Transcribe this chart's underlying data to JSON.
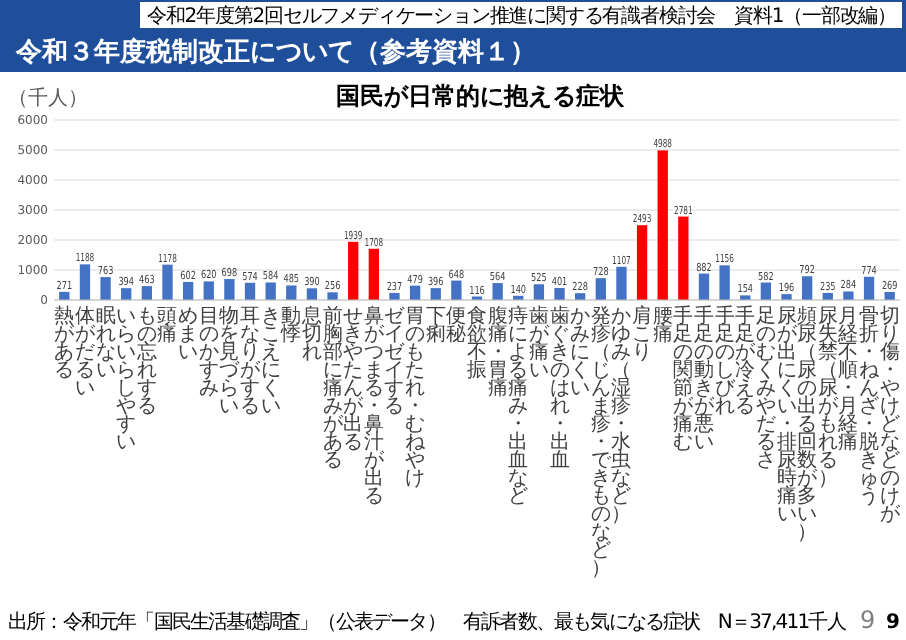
{
  "chart_data": {
    "type": "bar",
    "title": "国民が日常的に抱える症状",
    "ylabel": "（千人）",
    "categories": [
      "熱がある",
      "体がだるい",
      "眠れない",
      "いらいらしやすい",
      "もの忘れする",
      "頭痛",
      "めまい",
      "目のかすみ",
      "物を見づらい",
      "耳なりがする",
      "きこえにくい",
      "動悸",
      "息切れ",
      "前胸部に痛みがある",
      "せきやたんが出る",
      "鼻がつまる・鼻汁が出る",
      "ゼイゼイする",
      "胃のもたれ・むねやけ",
      "下痢",
      "便秘",
      "食欲不振",
      "腹痛・胃痛",
      "痔による痛み・出血など",
      "歯が痛い",
      "歯ぐきのはれ・出血",
      "かみにくい",
      "発疹（じんま疹・できものなど）",
      "かゆみ（湿疹・水虫など）",
      "肩こり",
      "腰痛",
      "手足の関節が痛む",
      "手足の動きが悪い",
      "手足のしびれ",
      "手足が冷える",
      "足のむくみやだるさ",
      "尿が出にくい・排尿時痛い",
      "頻尿（尿の出る回数が多い）",
      "尿失禁（尿がもれる）",
      "月経不順・月経痛",
      "骨折・ねんざ・脱きゅう",
      "切り傷・やけどなどのけが"
    ],
    "values": [
      271,
      1188,
      763,
      394,
      463,
      1178,
      602,
      620,
      698,
      574,
      584,
      485,
      390,
      256,
      1939,
      1708,
      237,
      479,
      396,
      648,
      116,
      564,
      140,
      525,
      401,
      228,
      728,
      1107,
      2493,
      4988,
      2781,
      882,
      1156,
      154,
      582,
      196,
      792,
      235,
      284,
      774,
      269
    ],
    "colors": [
      "#4472c4",
      "#4472c4",
      "#4472c4",
      "#4472c4",
      "#4472c4",
      "#4472c4",
      "#4472c4",
      "#4472c4",
      "#4472c4",
      "#4472c4",
      "#4472c4",
      "#4472c4",
      "#4472c4",
      "#4472c4",
      "#ff0000",
      "#ff0000",
      "#4472c4",
      "#4472c4",
      "#4472c4",
      "#4472c4",
      "#4472c4",
      "#4472c4",
      "#4472c4",
      "#4472c4",
      "#4472c4",
      "#4472c4",
      "#4472c4",
      "#4472c4",
      "#ff0000",
      "#ff0000",
      "#ff0000",
      "#4472c4",
      "#4472c4",
      "#4472c4",
      "#4472c4",
      "#4472c4",
      "#4472c4",
      "#4472c4",
      "#4472c4",
      "#4472c4",
      "#4472c4"
    ],
    "ylim": [
      0,
      6000
    ],
    "yticks": [
      0,
      1000,
      2000,
      3000,
      4000,
      5000,
      6000
    ],
    "grid": "y",
    "data_labels": true,
    "annotations": [
      "令和３年度税制改正について（参考資料１）",
      "令和2年度第2回セルフメディケーション推進に関する有識者検討会　資料1（一部改編）",
      "出所：令和元年「国民生活基礎調査」（公表データ）　有訴者数、最も気になる症状　N＝37,411千人",
      "9",
      "9"
    ]
  }
}
